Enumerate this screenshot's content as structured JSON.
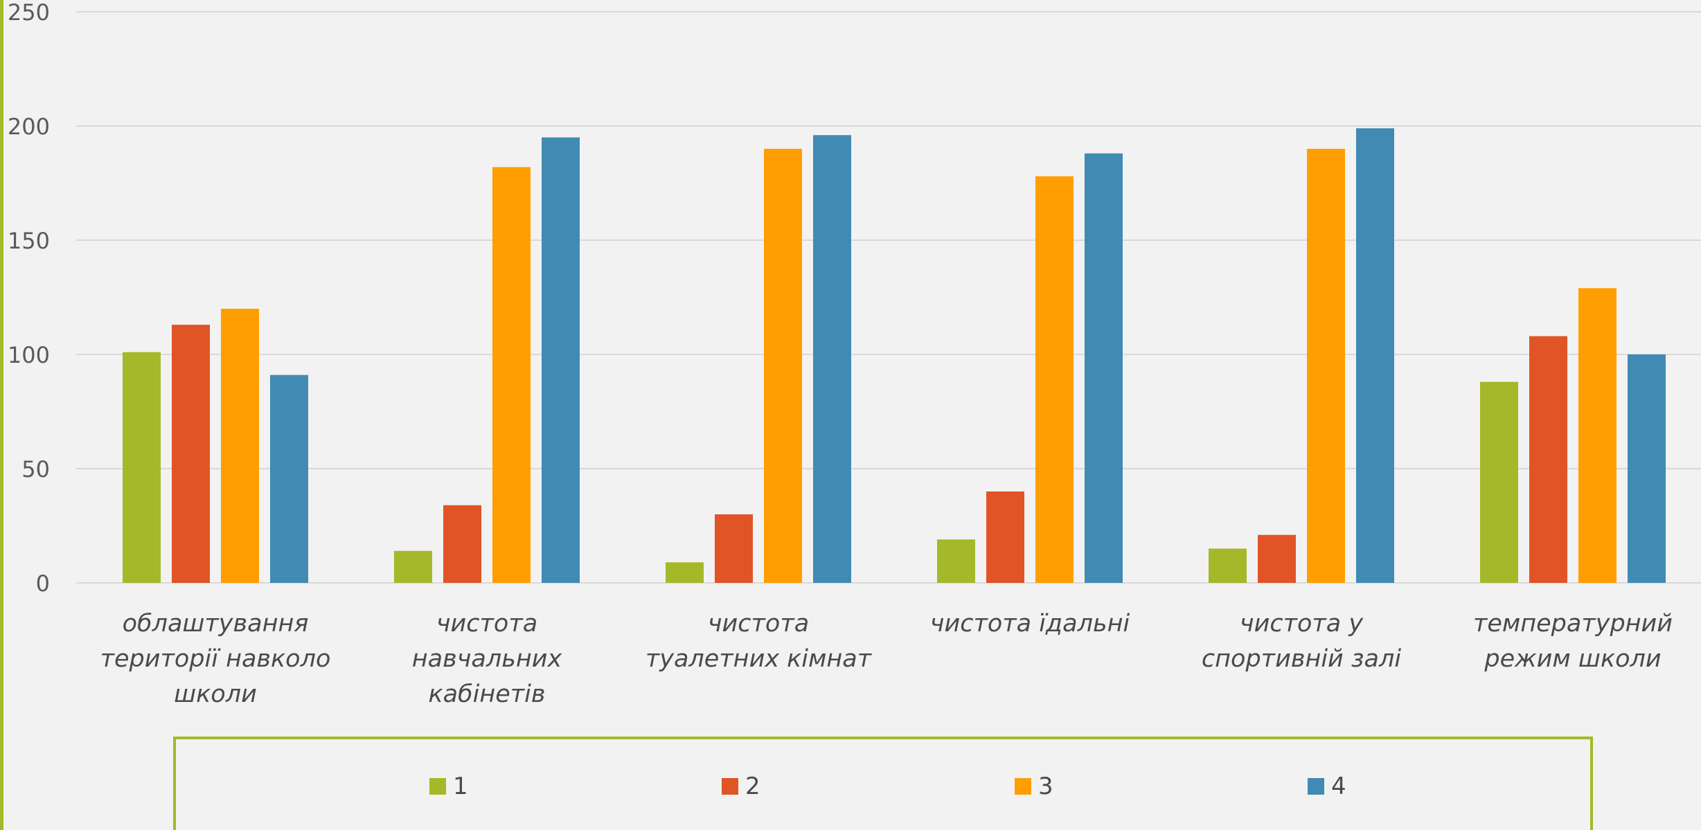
{
  "chart_data": {
    "type": "bar",
    "categories": [
      [
        "облаштування",
        "території навколо",
        "школи"
      ],
      [
        "чистота",
        "навчальних",
        "кабінетів"
      ],
      [
        "чистота",
        "туалетних кімнат"
      ],
      [
        "чистота їдальні"
      ],
      [
        "чистота у",
        "спортивній залі"
      ],
      [
        "температурний",
        "режим школи"
      ]
    ],
    "series": [
      {
        "name": "1",
        "color": "#a5b829",
        "values": [
          101,
          14,
          9,
          19,
          15,
          88
        ]
      },
      {
        "name": "2",
        "color": "#e05426",
        "values": [
          113,
          34,
          30,
          40,
          21,
          108
        ]
      },
      {
        "name": "3",
        "color": "#ff9e01",
        "values": [
          120,
          182,
          190,
          178,
          190,
          129
        ]
      },
      {
        "name": "4",
        "color": "#418ab3",
        "values": [
          91,
          195,
          196,
          188,
          199,
          100
        ]
      }
    ],
    "ylim": [
      0,
      250
    ],
    "yticks": [
      0,
      50,
      100,
      150,
      200,
      250
    ],
    "grid": true,
    "legend_position": "bottom",
    "colors": {
      "background": "#f2f2f2",
      "gridline": "#d9d9d9",
      "axis_text": "#595959",
      "category_text": "#4a4a4a",
      "frame": "#a5b829"
    }
  }
}
